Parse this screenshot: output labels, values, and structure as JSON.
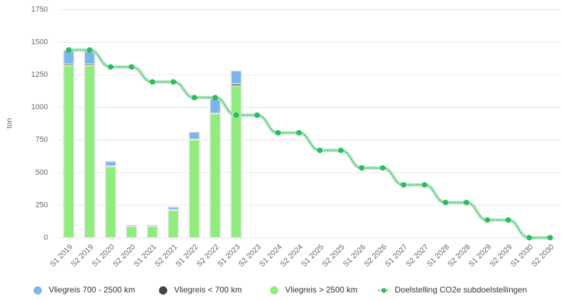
{
  "chart_data": {
    "type": "bar",
    "y_axis_label": "ton",
    "categories": [
      "S1 2019",
      "S2 2019",
      "S1 2020",
      "S2 2020",
      "S1 2021",
      "S2 2021",
      "S1 2022",
      "S2 2022",
      "S1 2023",
      "S2 2023",
      "S1 2024",
      "S2 2024",
      "S1 2025",
      "S2 2025",
      "S1 2026",
      "S2 2026",
      "S1 2027",
      "S2 2027",
      "S1 2028",
      "S2 2028",
      "S1 2029",
      "S2 2029",
      "S1 2030",
      "S2 2030"
    ],
    "series": [
      {
        "name": "Vliegreis 700 - 2500 km",
        "color": "#7cb5ec",
        "type": "bar",
        "values": [
          105,
          105,
          35,
          10,
          10,
          20,
          55,
          110,
          100,
          null,
          null,
          null,
          null,
          null,
          null,
          null,
          null,
          null,
          null,
          null,
          null,
          null,
          null,
          null
        ]
      },
      {
        "name": "Vliegreis < 700 km",
        "color": "#434348",
        "type": "bar",
        "values": [
          12,
          12,
          5,
          0,
          0,
          5,
          5,
          5,
          15,
          null,
          null,
          null,
          null,
          null,
          null,
          null,
          null,
          null,
          null,
          null,
          null,
          null,
          null,
          null
        ]
      },
      {
        "name": "Vliegreis > 2500 km",
        "color": "#90ed7d",
        "type": "bar",
        "values": [
          1320,
          1320,
          545,
          85,
          85,
          210,
          750,
          950,
          1165,
          null,
          null,
          null,
          null,
          null,
          null,
          null,
          null,
          null,
          null,
          null,
          null,
          null,
          null,
          null
        ]
      },
      {
        "name": "Doelstelling CO2e subdoelstellingen",
        "color": "#2dbb5f",
        "type": "line",
        "values": [
          1440,
          1440,
          1310,
          1310,
          1195,
          1195,
          1075,
          1075,
          940,
          940,
          805,
          805,
          670,
          670,
          535,
          535,
          405,
          405,
          270,
          270,
          135,
          135,
          0,
          0
        ]
      }
    ],
    "ylim": [
      0,
      1750
    ],
    "yticks": [
      0,
      250,
      500,
      750,
      1000,
      1250,
      1500,
      1750
    ],
    "grid": true,
    "legend": "bottom"
  }
}
